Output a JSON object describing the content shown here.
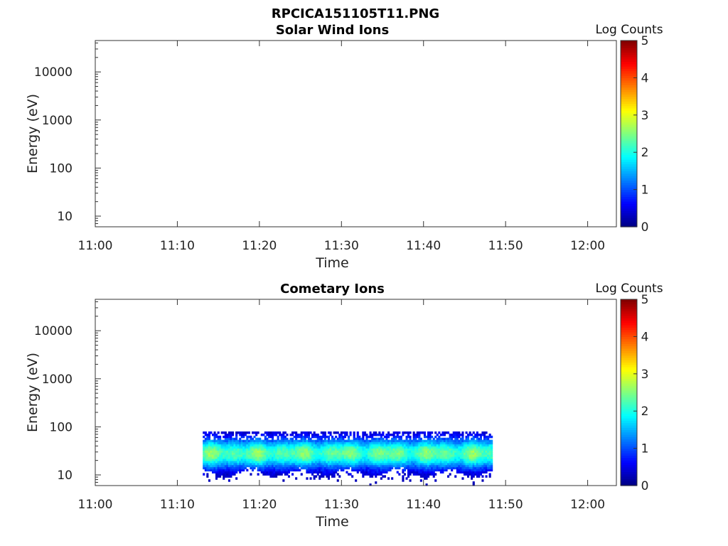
{
  "figure_title": "RPCICA151105T11.PNG",
  "chart_data": [
    {
      "type": "heatmap",
      "title": "Solar Wind Ions",
      "xlabel": "Time",
      "ylabel": "Energy (eV)",
      "x_tick_labels": [
        "11:00",
        "11:10",
        "11:20",
        "11:30",
        "11:40",
        "11:50",
        "12:00"
      ],
      "x_ticks_minutes": [
        0,
        10,
        20,
        30,
        40,
        50,
        60
      ],
      "xlim_minutes": [
        0,
        63.5
      ],
      "y_scale": "log",
      "y_tick_labels": [
        "10",
        "100",
        "1000",
        "10000"
      ],
      "y_ticks": [
        10,
        100,
        1000,
        10000
      ],
      "ylim": [
        6,
        45000
      ],
      "colorbar": {
        "label": "Log Counts",
        "ticks": [
          "0",
          "1",
          "2",
          "3",
          "4",
          "5"
        ],
        "range": [
          0,
          5
        ],
        "colormap": "jet"
      },
      "data_extent": null
    },
    {
      "type": "heatmap",
      "title": "Cometary Ions",
      "xlabel": "Time",
      "ylabel": "Energy (eV)",
      "x_tick_labels": [
        "11:00",
        "11:10",
        "11:20",
        "11:30",
        "11:40",
        "11:50",
        "12:00"
      ],
      "x_ticks_minutes": [
        0,
        10,
        20,
        30,
        40,
        50,
        60
      ],
      "xlim_minutes": [
        0,
        63.5
      ],
      "y_scale": "log",
      "y_tick_labels": [
        "10",
        "100",
        "1000",
        "10000"
      ],
      "y_ticks": [
        10,
        100,
        1000,
        10000
      ],
      "ylim": [
        6,
        45000
      ],
      "colorbar": {
        "label": "Log Counts",
        "ticks": [
          "0",
          "1",
          "2",
          "3",
          "4",
          "5"
        ],
        "range": [
          0,
          5
        ],
        "colormap": "jet"
      },
      "data_extent": {
        "time_minutes": [
          13.1,
          48.4
        ],
        "energy_ev": [
          6,
          80
        ],
        "peak_energy_ev": 27,
        "peak_log_counts": 2.6
      }
    }
  ]
}
